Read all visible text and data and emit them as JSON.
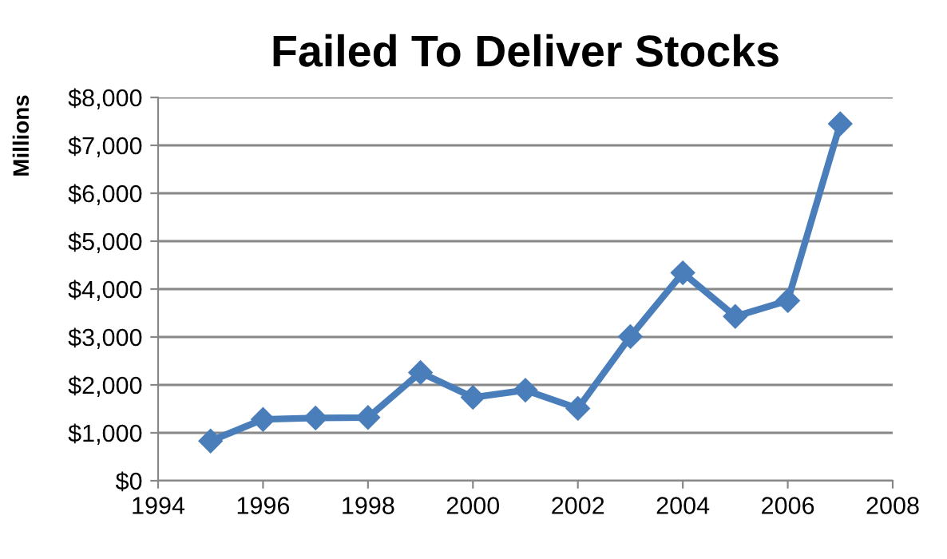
{
  "chart_data": {
    "type": "line",
    "title": "Failed To Deliver Stocks",
    "ylabel": "Millions",
    "x": [
      1995,
      1996,
      1997,
      1998,
      1999,
      2000,
      2001,
      2002,
      2003,
      2004,
      2005,
      2006,
      2007
    ],
    "series": [
      {
        "color": "#4a7ebb",
        "values": [
          830,
          1280,
          1310,
          1320,
          2260,
          1740,
          1890,
          1510,
          3010,
          4340,
          3430,
          3760,
          7450
        ]
      }
    ],
    "xlim": [
      1994,
      2008
    ],
    "xticks": [
      1994,
      1996,
      1998,
      2000,
      2002,
      2004,
      2006,
      2008
    ],
    "ylim": [
      0,
      8000
    ],
    "yticks": [
      {
        "value": 0,
        "label": "$0"
      },
      {
        "value": 1000,
        "label": "$1,000"
      },
      {
        "value": 2000,
        "label": "$2,000"
      },
      {
        "value": 3000,
        "label": "$3,000"
      },
      {
        "value": 4000,
        "label": "$4,000"
      },
      {
        "value": 5000,
        "label": "$5,000"
      },
      {
        "value": 6000,
        "label": "$6,000"
      },
      {
        "value": 7000,
        "label": "$7,000"
      },
      {
        "value": 8000,
        "label": "$8,000"
      }
    ],
    "grid": "y",
    "marker": "diamond",
    "line_style": "solid",
    "legend": false
  }
}
